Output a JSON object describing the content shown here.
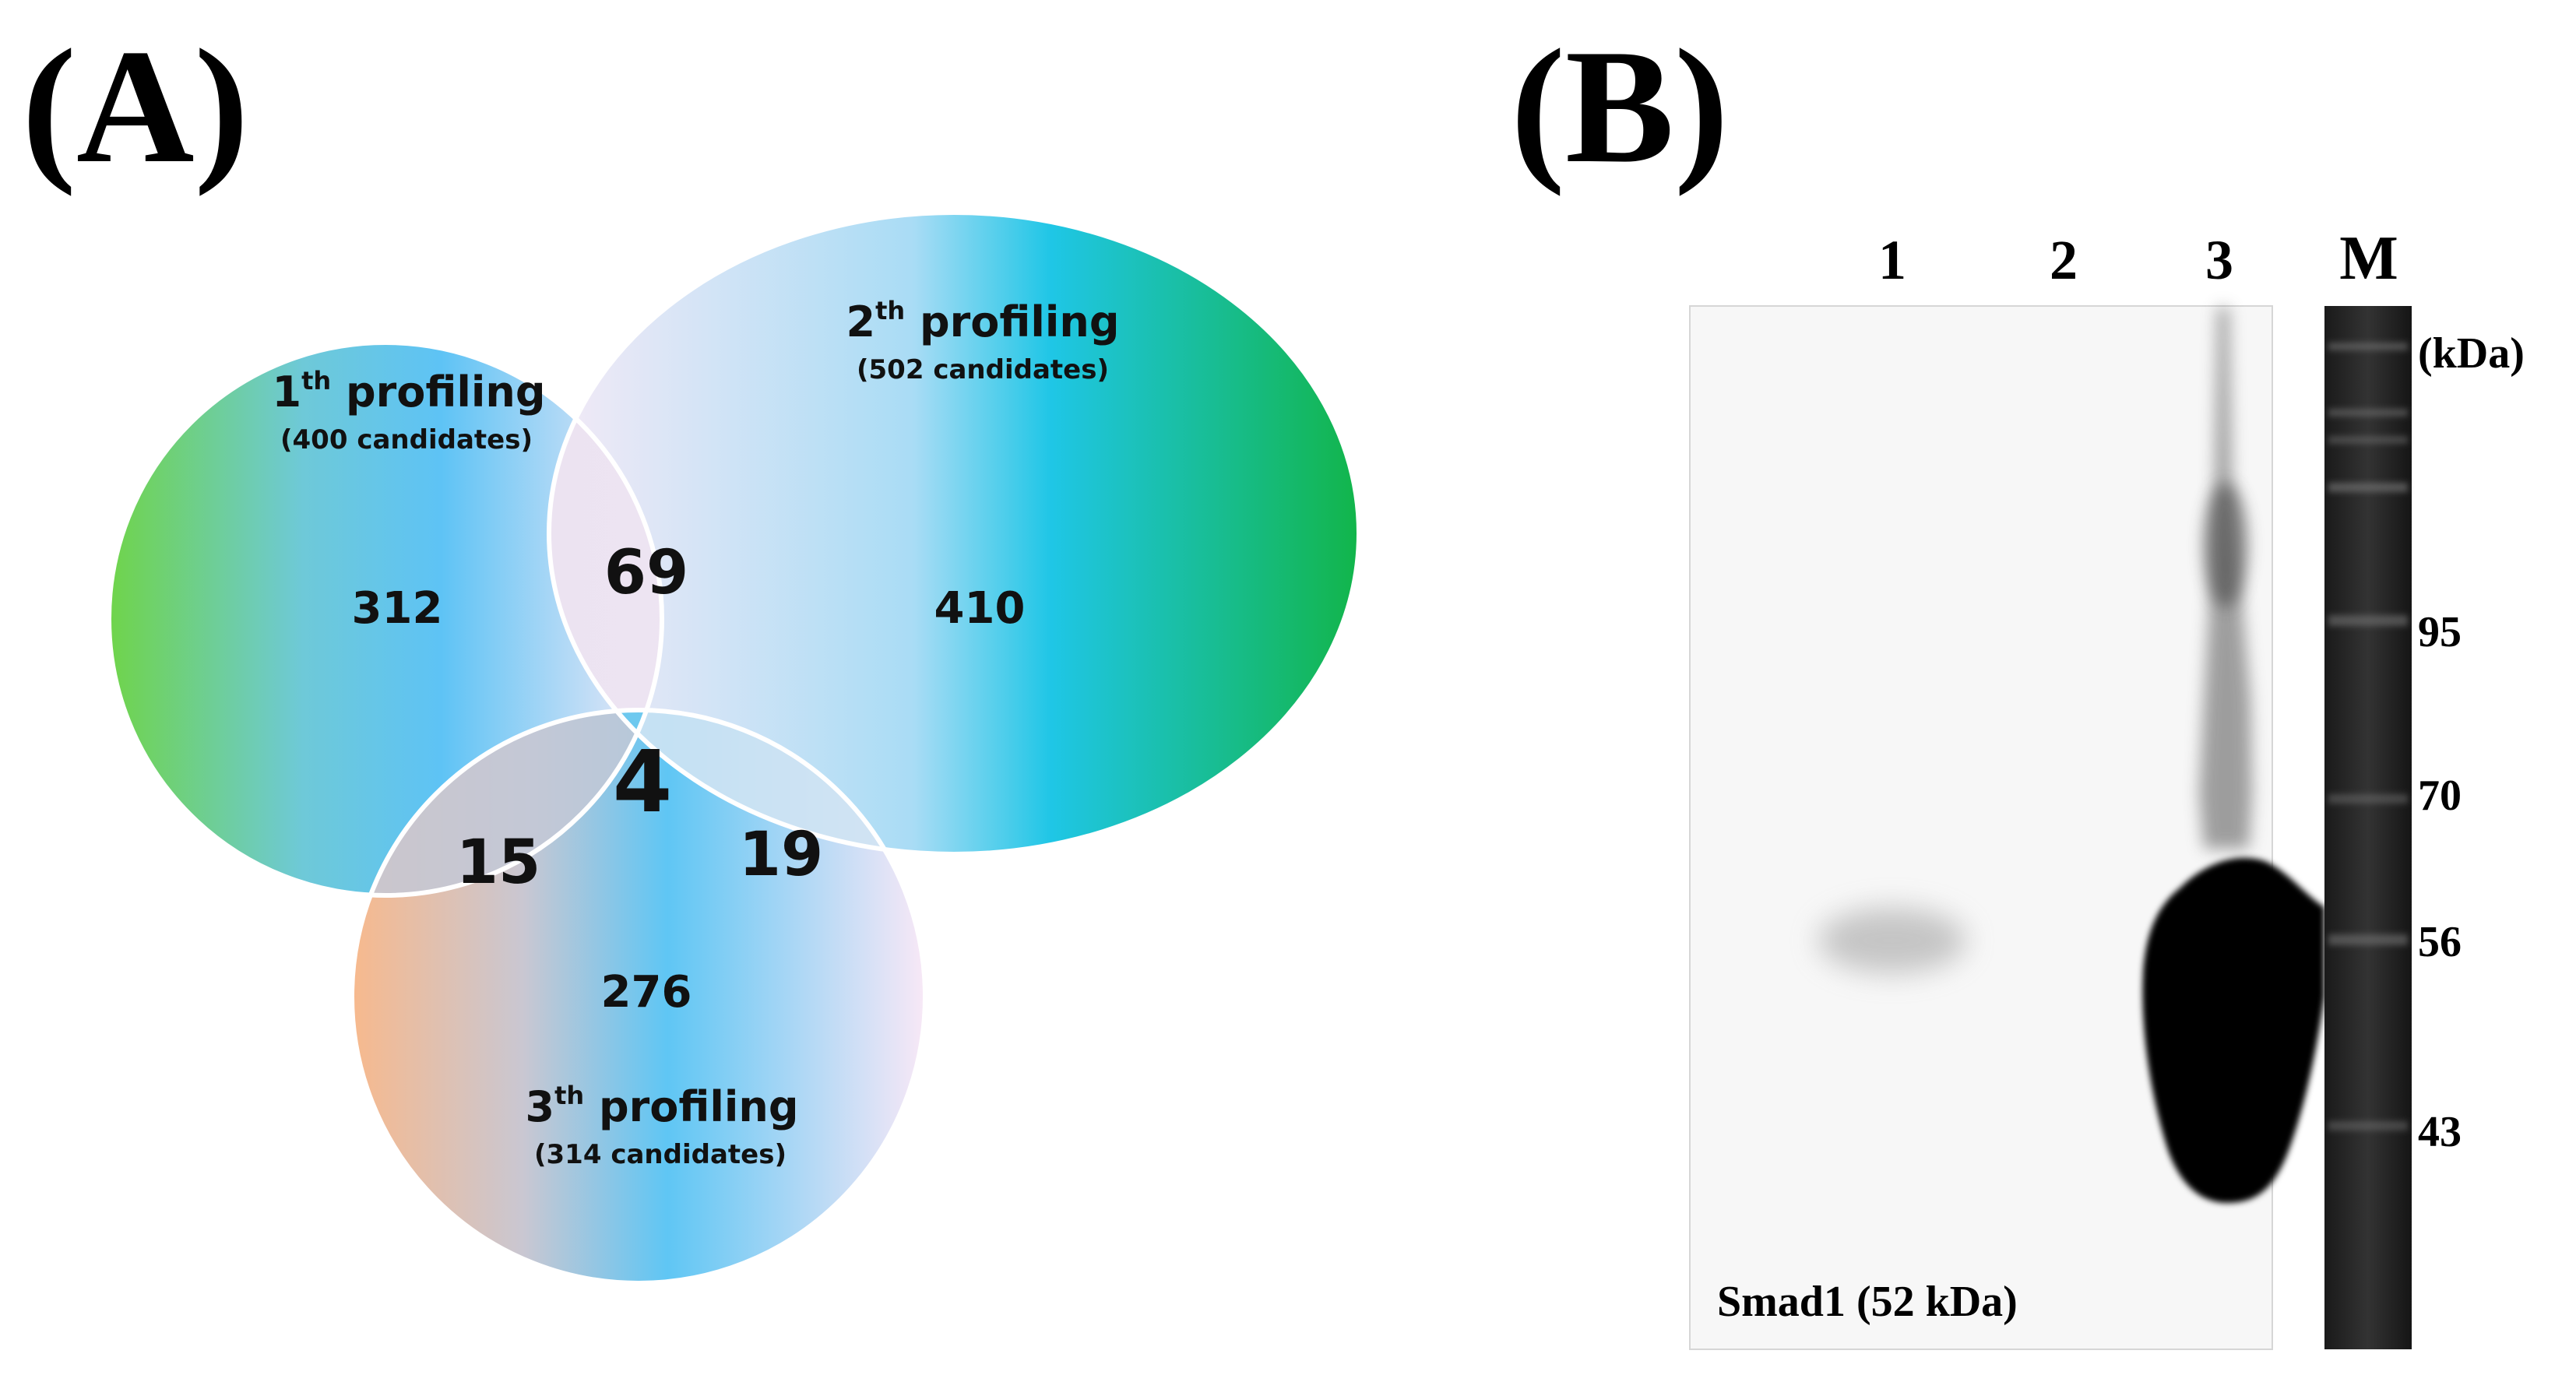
{
  "panel_a": {
    "label": "(A)",
    "sets": [
      {
        "title_main": "1",
        "title_sup": "th",
        "title_rest": " profiling",
        "subtitle": "(400 candidates)"
      },
      {
        "title_main": "2",
        "title_sup": "th",
        "title_rest": " profiling",
        "subtitle": "(502 candidates)"
      },
      {
        "title_main": "3",
        "title_sup": "th",
        "title_rest": " profiling",
        "subtitle": "(314 candidates)"
      }
    ],
    "regions": {
      "only_1": "312",
      "only_2": "410",
      "only_3": "276",
      "set_1_2": "69",
      "set_1_3": "15",
      "set_2_3": "19",
      "all_three": "4"
    }
  },
  "panel_b": {
    "label": "(B)",
    "lanes": [
      "1",
      "2",
      "3",
      "M"
    ],
    "unit_label": "(kDa)",
    "markers": [
      "95",
      "70",
      "56",
      "43"
    ],
    "caption": "Smad1 (52 kDa)"
  }
}
